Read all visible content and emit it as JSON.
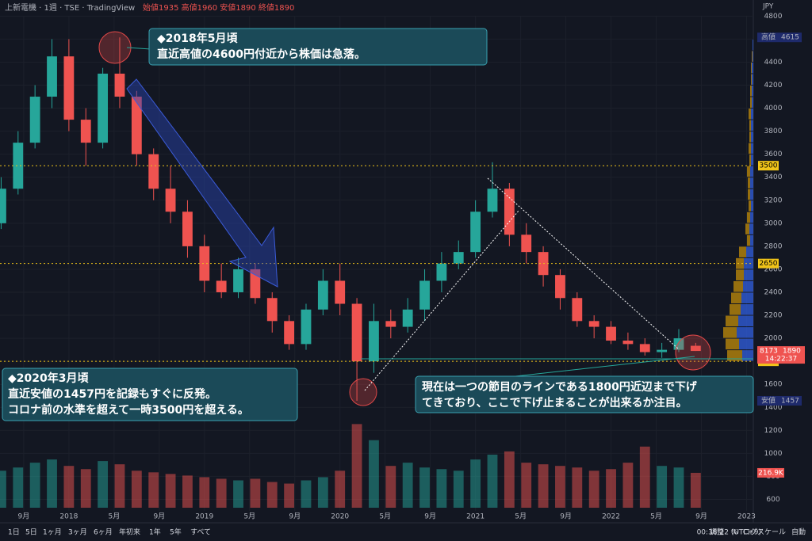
{
  "header": {
    "symbol": "上新電機 · 1週 · TSE · TradingView",
    "ohlc": "始値1935 高値1960 安値1890 終値1890",
    "currency": "JPY"
  },
  "chart_data": {
    "type": "candlestick",
    "x": [
      -6,
      -4.5,
      -3,
      -1.5,
      0,
      1.5,
      3,
      4.5,
      6,
      7.5,
      9,
      10.5,
      12,
      13.5,
      15,
      16.5,
      18,
      19.5,
      21,
      22.5,
      24,
      25.5,
      27,
      28.5,
      30,
      31.5,
      33,
      34.5,
      36,
      37.5,
      39,
      40.5,
      42,
      43.5,
      45,
      46.5,
      48,
      49.5,
      51,
      52.5,
      54,
      55.5
    ],
    "open": [
      3000,
      3300,
      3700,
      4100,
      4450,
      3900,
      3700,
      4300,
      4100,
      3600,
      3300,
      3100,
      2800,
      2500,
      2400,
      2600,
      2350,
      2150,
      1950,
      2250,
      2500,
      2300,
      1800,
      2150,
      2100,
      2250,
      2500,
      2650,
      2750,
      3100,
      3300,
      2900,
      2750,
      2550,
      2350,
      2150,
      2100,
      1980,
      1950,
      1880,
      1900,
      1935
    ],
    "high": [
      3400,
      3800,
      4200,
      4600,
      4600,
      4000,
      4350,
      4615,
      4150,
      3650,
      3500,
      3200,
      2900,
      2650,
      2700,
      2650,
      2400,
      2200,
      2300,
      2600,
      2650,
      2350,
      2300,
      2250,
      2350,
      2600,
      2750,
      2850,
      3200,
      3530,
      3350,
      3000,
      2800,
      2600,
      2400,
      2200,
      2150,
      2050,
      2000,
      1960,
      2080,
      1960
    ],
    "low": [
      2950,
      3250,
      3650,
      4000,
      3800,
      3500,
      3650,
      4000,
      3500,
      3200,
      3000,
      2700,
      2400,
      2350,
      2350,
      2300,
      2050,
      1900,
      1900,
      2200,
      2200,
      1457,
      1700,
      2000,
      2050,
      2150,
      2400,
      2600,
      2700,
      3050,
      2800,
      2650,
      2450,
      2250,
      2100,
      2000,
      1950,
      1900,
      1850,
      1830,
      1880,
      1890
    ],
    "close": [
      3300,
      3700,
      4100,
      4450,
      3900,
      3700,
      4300,
      4100,
      3600,
      3300,
      3100,
      2800,
      2500,
      2400,
      2600,
      2350,
      2150,
      1950,
      2250,
      2500,
      2300,
      1800,
      2150,
      2100,
      2250,
      2500,
      2650,
      2750,
      3100,
      3300,
      2900,
      2750,
      2550,
      2350,
      2150,
      2100,
      1980,
      1950,
      1880,
      1900,
      2000,
      1890
    ],
    "volume": [
      230,
      250,
      280,
      300,
      260,
      240,
      290,
      270,
      230,
      220,
      210,
      200,
      190,
      180,
      170,
      180,
      160,
      150,
      170,
      190,
      230,
      520,
      420,
      260,
      280,
      250,
      240,
      230,
      300,
      330,
      350,
      280,
      270,
      260,
      250,
      230,
      240,
      280,
      380,
      260,
      250,
      216.9
    ],
    "volume_last_label": "216.9K",
    "volume_ylim": [
      0,
      640
    ],
    "up_color": "#26a69a",
    "down_color": "#ef5350",
    "xlim": [
      -6.1,
      60.6
    ],
    "xticks": [
      {
        "value": -4,
        "label": "9月"
      },
      {
        "value": 0,
        "label": "2018"
      },
      {
        "value": 4,
        "label": "5月"
      },
      {
        "value": 8,
        "label": "9月"
      },
      {
        "value": 12,
        "label": "2019"
      },
      {
        "value": 16,
        "label": "5月"
      },
      {
        "value": 20,
        "label": "9月"
      },
      {
        "value": 24,
        "label": "2020"
      },
      {
        "value": 28,
        "label": "5月"
      },
      {
        "value": 32,
        "label": "9月"
      },
      {
        "value": 36,
        "label": "2021"
      },
      {
        "value": 40,
        "label": "5月"
      },
      {
        "value": 44,
        "label": "9月"
      },
      {
        "value": 48,
        "label": "2022"
      },
      {
        "value": 52,
        "label": "5月"
      },
      {
        "value": 56,
        "label": "9月"
      },
      {
        "value": 60,
        "label": "2023"
      }
    ],
    "ylim": [
      500,
      4940
    ],
    "yticks": [
      4800,
      4600,
      4400,
      4200,
      4000,
      3800,
      3600,
      3400,
      3200,
      3000,
      2800,
      2600,
      2400,
      2200,
      2000,
      1800,
      1600,
      1400,
      1200,
      1000,
      800,
      600
    ],
    "hlines": [
      {
        "value": 3500,
        "color": "#f0c419"
      },
      {
        "value": 2650,
        "color": "#f0c419"
      },
      {
        "value": 1800,
        "color": "#f0c419"
      }
    ],
    "markers": [
      {
        "label": "高値",
        "value": 4615,
        "color": "#1e2a6b"
      },
      {
        "label": "安値",
        "value": 1457,
        "color": "#1e2a6b"
      }
    ],
    "last_price": {
      "code": "8173",
      "value": 1890,
      "countdown": "14:22:37",
      "color": "#ef5350"
    },
    "volume_profile": {
      "prices": [
        1850,
        1950,
        2050,
        2150,
        2250,
        2350,
        2450,
        2550,
        2650,
        2750,
        2850,
        2950,
        3050,
        3150,
        3250,
        3350,
        3450,
        3550,
        3650,
        3750,
        3850,
        3950,
        4050,
        4150,
        4250,
        4350,
        4450,
        4550
      ],
      "up": [
        14,
        18,
        21,
        19,
        16,
        15,
        13,
        12,
        12,
        9,
        4,
        5,
        4,
        3,
        4,
        4,
        4,
        3,
        3,
        3,
        3,
        3,
        2,
        2,
        2,
        2,
        1,
        1
      ],
      "down": [
        19,
        17,
        17,
        16,
        14,
        13,
        12,
        10,
        10,
        9,
        4,
        5,
        4,
        3,
        3,
        3,
        4,
        2,
        3,
        2,
        2,
        3,
        2,
        2,
        1,
        1,
        1,
        0
      ],
      "xlim": [
        0,
        100
      ],
      "up_color": "#2f5bd6",
      "down_color": "#b8860b"
    }
  },
  "annotations": {
    "a1": [
      "◆2018年5月頃",
      "直近高値の4600円付近から株価は急落。"
    ],
    "a2": [
      "◆2020年3月頃",
      "直近安値の1457円を記録もすぐに反発。",
      "コロナ前の水準を超えて一時3500円を超える。"
    ],
    "a3": [
      "現在は一つの節目のラインである1800円近辺まで下げ",
      "てきており、ここで下げ止まることが出来るか注目。"
    ]
  },
  "toolbar": {
    "ranges": [
      "1日",
      "5日",
      "1ヶ月",
      "3ヶ月",
      "6ヶ月",
      "年初来",
      "1年",
      "5年",
      "すべて"
    ],
    "clock": "00:38:22 (UTC+9)",
    "right": [
      "調整",
      "%",
      "ログスケール",
      "自動"
    ]
  }
}
